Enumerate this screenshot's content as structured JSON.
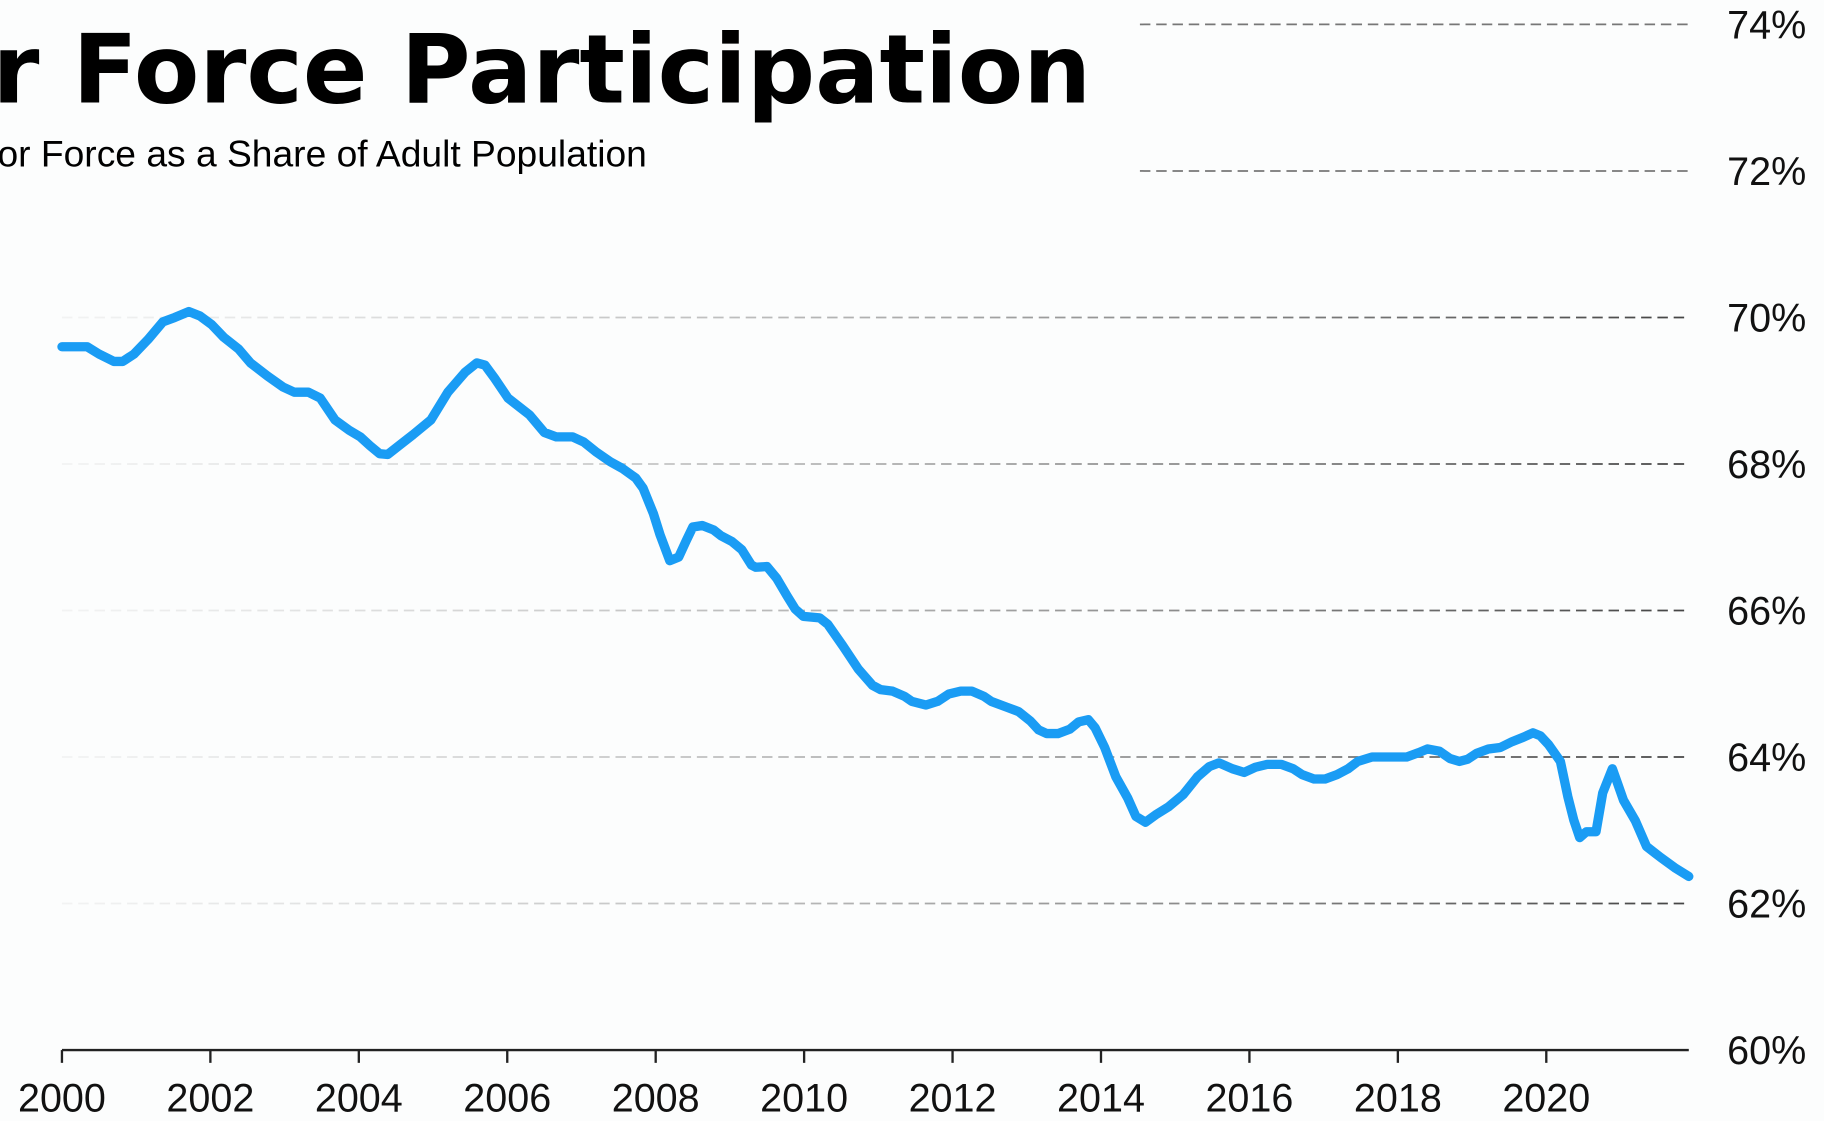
{
  "chart_data": {
    "type": "line",
    "title": "Labor Force Participation",
    "subtitle": "Labor Force as a Share of Adult Population",
    "x": [
      2000,
      2000.34,
      2000.5,
      2000.7,
      2000.82,
      2000.97,
      2001.16,
      2001.36,
      2001.52,
      2001.71,
      2001.86,
      2002.02,
      2002.18,
      2002.38,
      2002.54,
      2002.77,
      2002.98,
      2003.13,
      2003.32,
      2003.48,
      2003.68,
      2003.87,
      2004.02,
      2004.15,
      2004.28,
      2004.39,
      2004.54,
      2004.73,
      2004.97,
      2005.2,
      2005.43,
      2005.59,
      2005.7,
      2005.83,
      2006.01,
      2006.3,
      2006.5,
      2006.66,
      2006.88,
      2007.03,
      2007.19,
      2007.39,
      2007.55,
      2007.73,
      2007.83,
      2007.97,
      2008.06,
      2008.19,
      2008.31,
      2008.41,
      2008.5,
      2008.63,
      2008.78,
      2008.88,
      2009.03,
      2009.16,
      2009.29,
      2009.35,
      2009.5,
      2009.63,
      2009.77,
      2009.88,
      2009.99,
      2010.21,
      2010.32,
      2010.52,
      2010.73,
      2010.92,
      2011.03,
      2011.19,
      2011.35,
      2011.45,
      2011.64,
      2011.8,
      2011.95,
      2012.11,
      2012.26,
      2012.42,
      2012.52,
      2012.73,
      2012.89,
      2013.05,
      2013.16,
      2013.27,
      2013.42,
      2013.58,
      2013.7,
      2013.83,
      2013.92,
      2014.05,
      2014.2,
      2014.36,
      2014.47,
      2014.6,
      2014.75,
      2014.91,
      2015.11,
      2015.3,
      2015.46,
      2015.59,
      2015.77,
      2015.93,
      2016.08,
      2016.24,
      2016.43,
      2016.59,
      2016.71,
      2016.87,
      2017.02,
      2017.18,
      2017.33,
      2017.46,
      2017.65,
      2017.8,
      2018.12,
      2018.28,
      2018.4,
      2018.56,
      2018.7,
      2018.83,
      2018.94,
      2019.06,
      2019.22,
      2019.38,
      2019.54,
      2019.69,
      2019.82,
      2019.92,
      2020.03,
      2020.19,
      2020.29,
      2020.37,
      2020.45,
      2020.54,
      2020.67,
      2020.76,
      2020.89,
      2020.95,
      2021.04,
      2021.2,
      2021.35,
      2021.54,
      2021.73,
      2021.92
    ],
    "values": [
      69.6,
      69.6,
      69.5,
      69.4,
      69.4,
      69.5,
      69.7,
      69.94,
      70.0,
      70.08,
      70.02,
      69.9,
      69.73,
      69.57,
      69.38,
      69.2,
      69.05,
      68.98,
      68.98,
      68.9,
      68.6,
      68.46,
      68.37,
      68.25,
      68.14,
      68.13,
      68.25,
      68.4,
      68.6,
      68.98,
      69.25,
      69.38,
      69.35,
      69.17,
      68.9,
      68.67,
      68.43,
      68.37,
      68.37,
      68.3,
      68.17,
      68.03,
      67.94,
      67.81,
      67.67,
      67.32,
      67.03,
      66.68,
      66.73,
      66.95,
      67.14,
      67.16,
      67.1,
      67.02,
      66.94,
      66.83,
      66.62,
      66.59,
      66.6,
      66.44,
      66.2,
      66.02,
      65.92,
      65.9,
      65.81,
      65.52,
      65.2,
      64.98,
      64.92,
      64.9,
      64.83,
      64.76,
      64.71,
      64.76,
      64.86,
      64.9,
      64.9,
      64.83,
      64.76,
      64.68,
      64.62,
      64.49,
      64.37,
      64.32,
      64.32,
      64.38,
      64.48,
      64.51,
      64.4,
      64.13,
      63.73,
      63.44,
      63.19,
      63.11,
      63.22,
      63.32,
      63.49,
      63.73,
      63.87,
      63.92,
      63.84,
      63.79,
      63.86,
      63.9,
      63.9,
      63.84,
      63.76,
      63.7,
      63.7,
      63.76,
      63.84,
      63.94,
      64.0,
      64.0,
      64.0,
      64.06,
      64.11,
      64.08,
      63.98,
      63.94,
      63.97,
      64.05,
      64.11,
      64.13,
      64.21,
      64.27,
      64.33,
      64.29,
      64.17,
      63.94,
      63.46,
      63.14,
      62.9,
      62.98,
      62.98,
      63.51,
      63.84,
      63.67,
      63.41,
      63.13,
      62.78,
      62.63,
      62.49,
      62.37
    ],
    "color": "#1a9cf4",
    "xlim": [
      2000,
      2021.92
    ],
    "xticks": [
      2000,
      2002,
      2004,
      2006,
      2008,
      2010,
      2012,
      2014,
      2016,
      2018,
      2020
    ],
    "ylim": [
      60,
      74
    ],
    "yticks": [
      {
        "value": 60,
        "label": "60%"
      },
      {
        "value": 62,
        "label": "62%"
      },
      {
        "value": 64,
        "label": "64%"
      },
      {
        "value": 66,
        "label": "66%"
      },
      {
        "value": 68,
        "label": "68%"
      },
      {
        "value": 70,
        "label": "70%"
      },
      {
        "value": 72,
        "label": "72%"
      },
      {
        "value": 74,
        "label": "74%"
      }
    ],
    "grid": true
  }
}
